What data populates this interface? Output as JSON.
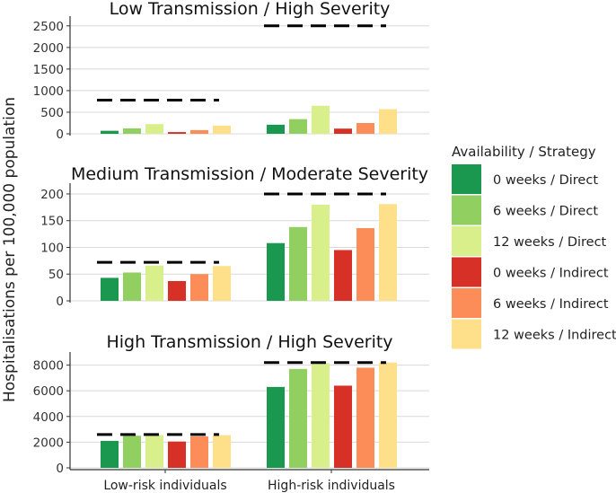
{
  "chart_data": {
    "type": "bar",
    "ylabel": "Hospitalisations per 100,000 population",
    "categories": [
      "Low-risk individuals",
      "High-risk individuals"
    ],
    "legend": {
      "title": "Availability / Strategy",
      "position": "right",
      "entries": [
        {
          "label": "0 weeks / Direct",
          "color": "#1a9850"
        },
        {
          "label": "6 weeks / Direct",
          "color": "#91cf60"
        },
        {
          "label": "12 weeks / Direct",
          "color": "#d9ef8b"
        },
        {
          "label": "0 weeks / Indirect",
          "color": "#d73027"
        },
        {
          "label": "6 weeks / Indirect",
          "color": "#fc8d59"
        },
        {
          "label": "12 weeks / Indirect",
          "color": "#fee08b"
        }
      ]
    },
    "panels": [
      {
        "title": "Low Transmission / High Severity",
        "ylim": [
          0,
          2600
        ],
        "yticks": [
          0,
          500,
          1000,
          1500,
          2000,
          2500
        ],
        "reference": [
          780,
          2500
        ],
        "series": [
          {
            "name": "0 weeks / Direct",
            "values": [
              70,
              210
            ]
          },
          {
            "name": "6 weeks / Direct",
            "values": [
              125,
              340
            ]
          },
          {
            "name": "12 weeks / Direct",
            "values": [
              225,
              650
            ]
          },
          {
            "name": "0 weeks / Indirect",
            "values": [
              40,
              120
            ]
          },
          {
            "name": "6 weeks / Indirect",
            "values": [
              85,
              250
            ]
          },
          {
            "name": "12 weeks / Indirect",
            "values": [
              190,
              570
            ]
          }
        ]
      },
      {
        "title": "Medium Transmission / Moderate Severity",
        "ylim": [
          0,
          210
        ],
        "yticks": [
          0,
          50,
          100,
          150,
          200
        ],
        "reference": [
          72,
          200
        ],
        "series": [
          {
            "name": "0 weeks / Direct",
            "values": [
              43,
              108
            ]
          },
          {
            "name": "6 weeks / Direct",
            "values": [
              53,
              138
            ]
          },
          {
            "name": "12 weeks / Direct",
            "values": [
              66,
              180
            ]
          },
          {
            "name": "0 weeks / Indirect",
            "values": [
              37,
              95
            ]
          },
          {
            "name": "6 weeks / Indirect",
            "values": [
              50,
              136
            ]
          },
          {
            "name": "12 weeks / Indirect",
            "values": [
              65,
              181
            ]
          }
        ]
      },
      {
        "title": "High Transmission / High Severity",
        "ylim": [
          0,
          8600
        ],
        "yticks": [
          0,
          2000,
          4000,
          6000,
          8000
        ],
        "reference": [
          2600,
          8200
        ],
        "series": [
          {
            "name": "0 weeks / Direct",
            "values": [
              2100,
              6300
            ]
          },
          {
            "name": "6 weeks / Direct",
            "values": [
              2500,
              7700
            ]
          },
          {
            "name": "12 weeks / Direct",
            "values": [
              2550,
              8150
            ]
          },
          {
            "name": "0 weeks / Indirect",
            "values": [
              2050,
              6400
            ]
          },
          {
            "name": "6 weeks / Indirect",
            "values": [
              2450,
              7800
            ]
          },
          {
            "name": "12 weeks / Indirect",
            "values": [
              2550,
              8200
            ]
          }
        ]
      }
    ]
  }
}
